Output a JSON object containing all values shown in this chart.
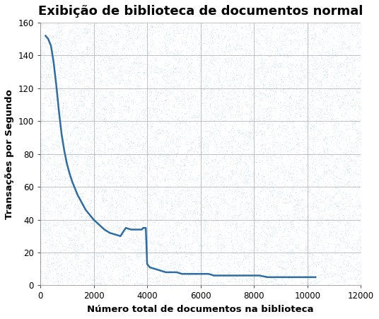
{
  "title": "Exibição de biblioteca de documentos normal",
  "xlabel": "Número total de documentos na biblioteca",
  "ylabel": "Transações por Segundo",
  "xlim": [
    0,
    12000
  ],
  "ylim": [
    0,
    160
  ],
  "xticks": [
    0,
    2000,
    4000,
    6000,
    8000,
    10000,
    12000
  ],
  "yticks": [
    0,
    20,
    40,
    60,
    80,
    100,
    120,
    140,
    160
  ],
  "line_color": "#2E6DA4",
  "bg_color": "#FFFFFF",
  "grid_color": "#AAAAAA",
  "x": [
    200,
    300,
    400,
    500,
    600,
    700,
    800,
    900,
    1000,
    1100,
    1200,
    1300,
    1400,
    1500,
    1600,
    1700,
    1800,
    1900,
    2000,
    2200,
    2400,
    2600,
    2800,
    3000,
    3200,
    3400,
    3600,
    3800,
    3850,
    3900,
    3950,
    4000,
    4050,
    4100,
    4300,
    4500,
    4700,
    4900,
    5100,
    5300,
    5500,
    5800,
    6000,
    6300,
    6500,
    6800,
    7000,
    7300,
    7600,
    7800,
    8000,
    8200,
    8500,
    8800,
    9000,
    9300,
    9600,
    9800,
    10000,
    10300
  ],
  "y": [
    152,
    150,
    146,
    136,
    122,
    106,
    92,
    82,
    74,
    68,
    63,
    59,
    55,
    52,
    49,
    46,
    44,
    42,
    40,
    37,
    34,
    32,
    31,
    30,
    35,
    34,
    34,
    34,
    35,
    35,
    35,
    13,
    12,
    11,
    10,
    9,
    8,
    8,
    8,
    7,
    7,
    7,
    7,
    7,
    6,
    6,
    6,
    6,
    6,
    6,
    6,
    6,
    5,
    5,
    5,
    5,
    5,
    5,
    5,
    5
  ]
}
